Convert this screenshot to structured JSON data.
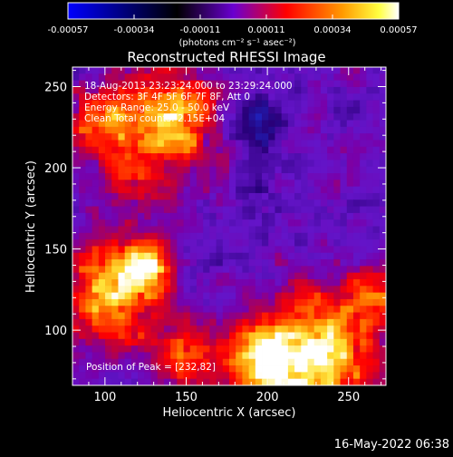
{
  "colorbar": {
    "ticks": [
      "-0.00057",
      "-0.00034",
      "-0.00011",
      "0.00011",
      "0.00034",
      "0.00057"
    ],
    "unit_label": "(photons cm⁻² s⁻¹ asec⁻²)",
    "colors": [
      "#0000ff",
      "#000000",
      "#8000ff",
      "#ff0000",
      "#ff8000",
      "#ffff00",
      "#ffffff"
    ]
  },
  "plot": {
    "title": "Reconstructed RHESSI Image",
    "x_label": "Heliocentric X (arcsec)",
    "y_label": "Heliocentric Y (arcsec)",
    "x_ticks": [
      "100",
      "150",
      "200",
      "250"
    ],
    "y_ticks": [
      "100",
      "150",
      "200",
      "250"
    ],
    "info_lines": [
      "18-Aug-2013 23:23:24.000 to 23:29:24.000",
      "Detectors: 3F 4F 5F 6F 7F 8F, Att 0",
      "Energy Range: 25.0 - 50.0 keV",
      "Clean    Total counts: 2.15E+04"
    ],
    "peak_label": "Position of Peak = [232,82]"
  },
  "chart_data": {
    "type": "heatmap",
    "title": "Reconstructed RHESSI Image",
    "xlabel": "Heliocentric X (arcsec)",
    "ylabel": "Heliocentric Y (arcsec)",
    "xlim": [
      80,
      273
    ],
    "ylim": [
      66,
      262
    ],
    "colorbar_range": [
      -0.00057,
      0.00057
    ],
    "peak_position": [
      232,
      82
    ]
  },
  "footer": {
    "date": "16-May-2022 06:38"
  }
}
